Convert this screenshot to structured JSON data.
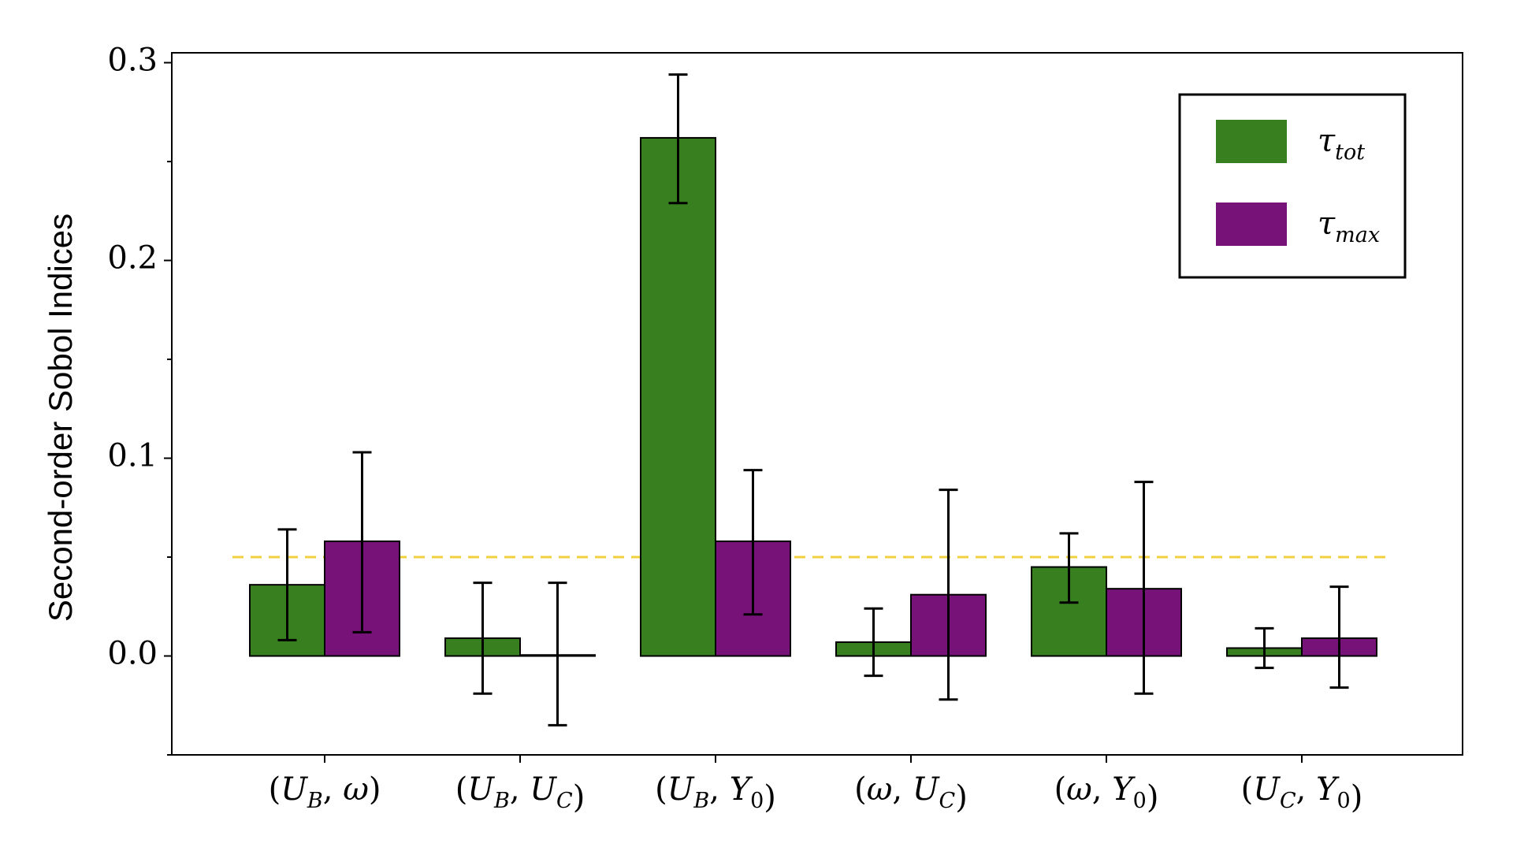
{
  "chart_data": {
    "type": "bar",
    "title": "",
    "xlabel": "",
    "ylabel": "Second-order Sobol Indices",
    "ylim": [
      -0.05,
      0.305
    ],
    "yticks": [
      0.0,
      0.1,
      0.2,
      0.3
    ],
    "ytick_labels": [
      "0.0",
      "0.1",
      "0.2",
      "0.3"
    ],
    "categories": [
      {
        "pre": "(",
        "parts": [
          [
            "U",
            "B"
          ],
          [
            "ω",
            ""
          ]
        ],
        "post": ")"
      },
      {
        "pre": "(",
        "parts": [
          [
            "U",
            "B"
          ],
          [
            "U",
            "C"
          ]
        ],
        "post": ")"
      },
      {
        "pre": "(",
        "parts": [
          [
            "U",
            "B"
          ],
          [
            "Y",
            "0"
          ]
        ],
        "post": ")"
      },
      {
        "pre": "(",
        "parts": [
          [
            "ω",
            ""
          ],
          [
            "U",
            "C"
          ]
        ],
        "post": ")"
      },
      {
        "pre": "(",
        "parts": [
          [
            "ω",
            ""
          ],
          [
            "Y",
            "0"
          ]
        ],
        "post": ")"
      },
      {
        "pre": "(",
        "parts": [
          [
            "U",
            "C"
          ],
          [
            "Y",
            "0"
          ]
        ],
        "post": ")"
      }
    ],
    "category_labels_plain": [
      "(U_B, ω)",
      "(U_B, U_C)",
      "(U_B, Y_0)",
      "(ω, U_C)",
      "(ω, Y_0)",
      "(U_C, Y_0)"
    ],
    "series": [
      {
        "name": "τ_tot",
        "symbol": "τ",
        "subscript": "tot",
        "color": "#38801f",
        "values": [
          0.036,
          0.009,
          0.262,
          0.007,
          0.045,
          0.004
        ],
        "err_low": [
          0.008,
          -0.019,
          0.229,
          -0.01,
          0.027,
          -0.006
        ],
        "err_high": [
          0.064,
          0.037,
          0.294,
          0.024,
          0.062,
          0.014
        ]
      },
      {
        "name": "τ_max",
        "symbol": "τ",
        "subscript": "max",
        "color": "#771378",
        "values": [
          0.058,
          0.0005,
          0.058,
          0.031,
          0.034,
          0.009
        ],
        "err_low": [
          0.012,
          -0.035,
          0.021,
          -0.022,
          -0.019,
          -0.016
        ],
        "err_high": [
          0.103,
          0.037,
          0.094,
          0.084,
          0.088,
          0.035
        ]
      }
    ],
    "threshold": {
      "value": 0.05,
      "color": "#f0d040",
      "style": "dashed"
    },
    "legend_position": "top-right",
    "grid": false
  }
}
